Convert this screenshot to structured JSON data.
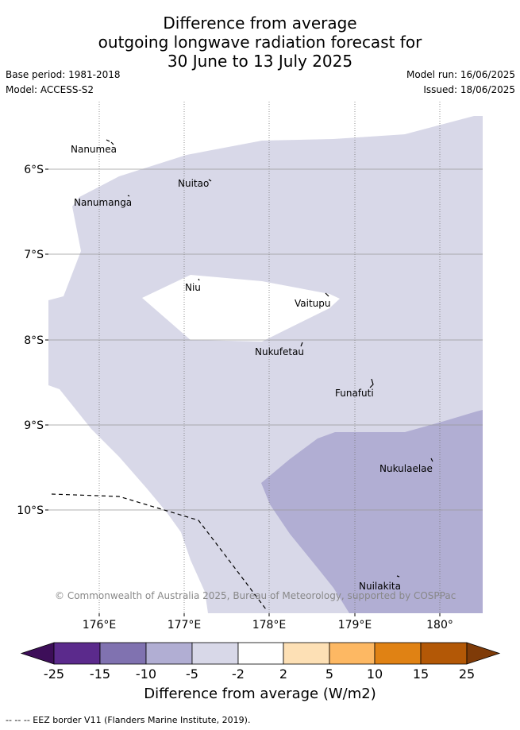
{
  "header": {
    "title_line1": "Difference from average",
    "title_line2": "outgoing longwave radiation forecast for",
    "title_line3": "30 June to 13 July 2025",
    "base_period": "Base period: 1981-2018",
    "model": "Model: ACCESS-S2",
    "model_run": "Model run: 16/06/2025",
    "issued": "Issued: 18/06/2025"
  },
  "map": {
    "lat_labels": [
      "6°S",
      "7°S",
      "8°S",
      "9°S",
      "10°S"
    ],
    "lon_labels": [
      "176°E",
      "177°E",
      "178°E",
      "179°E",
      "180°"
    ],
    "places": [
      "Nanumea",
      "Nuitao",
      "Nanumanga",
      "Niu",
      "Vaitupu",
      "Nukufetau",
      "Funafuti",
      "Nukulaelae",
      "Nuilakita"
    ],
    "copyright": "© Commonwealth of Australia 2025, Bureau of Meteorology, supported by COSPPac",
    "fill_colors": {
      "light": "#d8d8e8",
      "medium": "#b1aed3",
      "none": "#ffffff"
    }
  },
  "colorbar": {
    "ticks": [
      "-25",
      "-15",
      "-10",
      "-5",
      "-2",
      "2",
      "5",
      "10",
      "15",
      "25"
    ],
    "colors": [
      "#3d0e59",
      "#5b2a8c",
      "#8072b0",
      "#b1aed3",
      "#d8d8e8",
      "#ffffff",
      "#fde0b5",
      "#fdb863",
      "#e08214",
      "#b35806",
      "#7f3b08"
    ],
    "label": "Difference from average (W/m2)"
  },
  "footer": {
    "eez_note": "--  --  -- EEZ border V11 (Flanders Marine Institute, 2019)."
  }
}
